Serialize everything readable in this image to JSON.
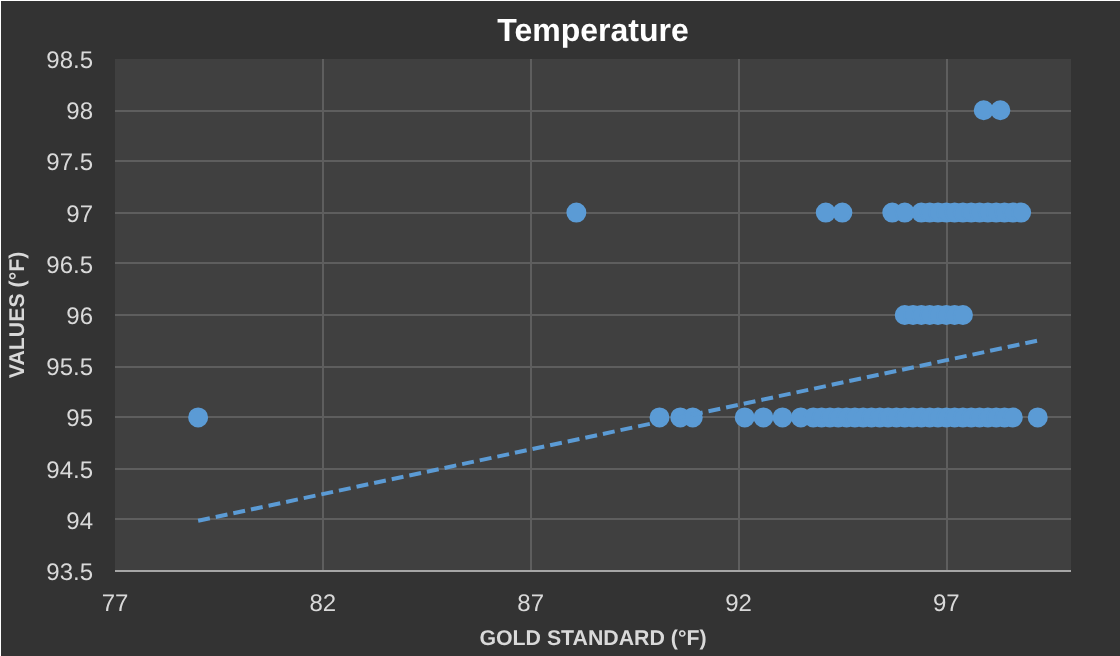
{
  "chart_data": {
    "type": "scatter",
    "title": "Temperature",
    "xlabel": "GOLD STANDARD (°F)",
    "ylabel": "VALUES (°F)",
    "xlim": [
      77,
      100
    ],
    "xticks": [
      77,
      82,
      87,
      92,
      97
    ],
    "ylim": [
      93.5,
      98.5
    ],
    "yticks": [
      93.5,
      94,
      94.5,
      95,
      95.5,
      96,
      96.5,
      97,
      97.5,
      98,
      98.5
    ],
    "grid": true,
    "series": [
      {
        "marker": "circle",
        "color": "#5b9bd5",
        "x": [
          79.0,
          88.1,
          90.1,
          90.6,
          90.9,
          92.15,
          92.6,
          93.06,
          93.5,
          93.8,
          94.0,
          94.2,
          94.4,
          94.6,
          94.8,
          95.0,
          95.2,
          95.4,
          95.6,
          95.8,
          96.0,
          96.2,
          96.4,
          96.6,
          96.8,
          97.0,
          97.2,
          97.4,
          97.6,
          97.8,
          98.0,
          98.2,
          98.4,
          98.6,
          99.2,
          94.1,
          94.5,
          95.7,
          96.0,
          96.4,
          96.6,
          96.8,
          97.0,
          97.2,
          97.4,
          97.6,
          97.8,
          98.0,
          98.2,
          98.4,
          98.6,
          98.8,
          96.0,
          96.2,
          96.4,
          96.6,
          96.8,
          97.0,
          97.2,
          97.4,
          97.9,
          98.3
        ],
        "values": [
          95,
          97,
          95,
          95,
          95,
          95,
          95,
          95,
          95,
          95,
          95,
          95,
          95,
          95,
          95,
          95,
          95,
          95,
          95,
          95,
          95,
          95,
          95,
          95,
          95,
          95,
          95,
          95,
          95,
          95,
          95,
          95,
          95,
          95,
          95,
          97,
          97,
          97,
          97,
          97,
          97,
          97,
          97,
          97,
          97,
          97,
          97,
          97,
          97,
          97,
          97,
          97,
          96,
          96,
          96,
          96,
          96,
          96,
          96,
          96,
          98,
          98
        ]
      },
      {
        "type": "line",
        "color": "#5b9bd5",
        "line_style": "dashed",
        "x": [
          79.0,
          99.2
        ],
        "values": [
          93.99,
          95.75
        ]
      }
    ]
  }
}
